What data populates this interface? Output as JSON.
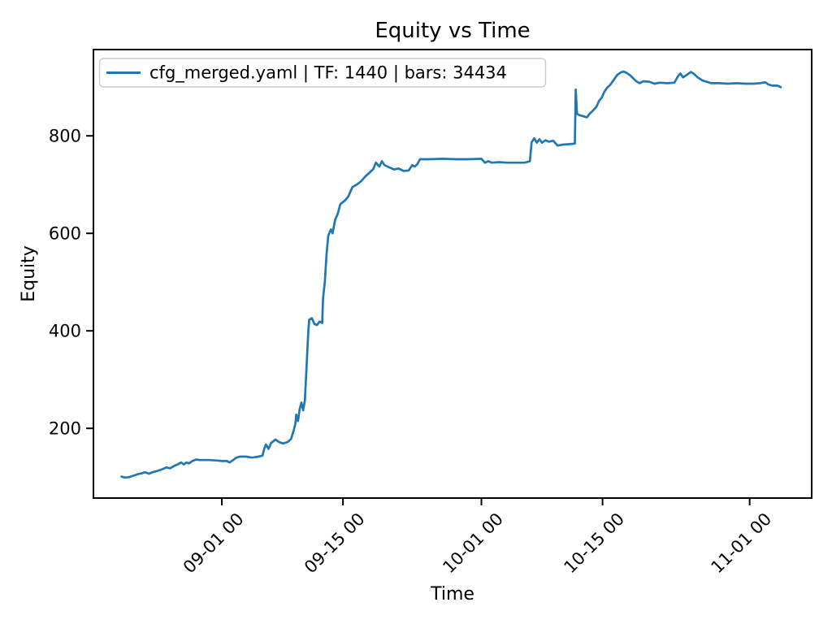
{
  "title": "Equity vs Time",
  "xlabel": "Time",
  "ylabel": "Equity",
  "legend": {
    "label": "cfg_merged.yaml | TF: 1440 | bars: 34434",
    "line_color": "#1f77b4"
  },
  "colors": {
    "series_blue": "#1f77b4",
    "axis_black": "#000000",
    "legend_border": "#cccccc",
    "background": "#ffffff"
  },
  "chart_data": {
    "type": "line",
    "title": "Equity vs Time",
    "xlabel": "Time",
    "ylabel": "Equity",
    "x_unit": "days since 09-01 00:00",
    "xlim_days": [
      -14.84,
      68.17
    ],
    "ylim": [
      57,
      977
    ],
    "grid": false,
    "legend_position": "upper left",
    "x_ticks": [
      {
        "day": 0,
        "label": "09-01 00"
      },
      {
        "day": 14,
        "label": "09-15 00"
      },
      {
        "day": 30,
        "label": "10-01 00"
      },
      {
        "day": 44,
        "label": "10-15 00"
      },
      {
        "day": 61,
        "label": "11-01 00"
      }
    ],
    "y_ticks": [
      200,
      400,
      600,
      800
    ],
    "series": [
      {
        "name": "cfg_merged.yaml | TF: 1440 | bars: 34434",
        "color": "#1f77b4",
        "line_width": 2.7,
        "points": [
          [
            -11.6,
            101
          ],
          [
            -11.2,
            99
          ],
          [
            -10.7,
            100
          ],
          [
            -10.2,
            103
          ],
          [
            -9.7,
            106
          ],
          [
            -9.2,
            108
          ],
          [
            -8.9,
            110
          ],
          [
            -8.4,
            107
          ],
          [
            -8.0,
            110
          ],
          [
            -7.4,
            113
          ],
          [
            -6.9,
            116
          ],
          [
            -6.4,
            120
          ],
          [
            -6.0,
            118
          ],
          [
            -5.5,
            123
          ],
          [
            -5.1,
            126
          ],
          [
            -4.7,
            130
          ],
          [
            -4.4,
            126
          ],
          [
            -4.1,
            130
          ],
          [
            -3.8,
            128
          ],
          [
            -3.4,
            133
          ],
          [
            -3.0,
            136
          ],
          [
            -2.5,
            135
          ],
          [
            -1.5,
            135
          ],
          [
            -0.5,
            134
          ],
          [
            0.0,
            133
          ],
          [
            0.6,
            133
          ],
          [
            0.9,
            130
          ],
          [
            1.3,
            135
          ],
          [
            1.7,
            140
          ],
          [
            2.1,
            142
          ],
          [
            2.8,
            142
          ],
          [
            3.5,
            140
          ],
          [
            4.2,
            142
          ],
          [
            4.7,
            144
          ],
          [
            4.9,
            158
          ],
          [
            5.1,
            167
          ],
          [
            5.4,
            158
          ],
          [
            5.7,
            170
          ],
          [
            6.2,
            177
          ],
          [
            6.6,
            172
          ],
          [
            7.1,
            169
          ],
          [
            7.6,
            172
          ],
          [
            8.0,
            178
          ],
          [
            8.3,
            195
          ],
          [
            8.5,
            210
          ],
          [
            8.6,
            228
          ],
          [
            8.8,
            215
          ],
          [
            9.0,
            240
          ],
          [
            9.2,
            253
          ],
          [
            9.4,
            237
          ],
          [
            9.6,
            258
          ],
          [
            9.8,
            330
          ],
          [
            10.0,
            400
          ],
          [
            10.1,
            423
          ],
          [
            10.4,
            426
          ],
          [
            10.7,
            414
          ],
          [
            11.0,
            412
          ],
          [
            11.3,
            419
          ],
          [
            11.6,
            416
          ],
          [
            11.7,
            467
          ],
          [
            11.9,
            500
          ],
          [
            12.1,
            557
          ],
          [
            12.3,
            595
          ],
          [
            12.6,
            608
          ],
          [
            12.8,
            600
          ],
          [
            13.1,
            628
          ],
          [
            13.4,
            640
          ],
          [
            13.7,
            660
          ],
          [
            14.2,
            667
          ],
          [
            14.6,
            675
          ],
          [
            15.1,
            695
          ],
          [
            15.6,
            700
          ],
          [
            16.1,
            707
          ],
          [
            16.6,
            717
          ],
          [
            17.1,
            725
          ],
          [
            17.5,
            732
          ],
          [
            17.8,
            745
          ],
          [
            18.2,
            737
          ],
          [
            18.5,
            748
          ],
          [
            18.8,
            740
          ],
          [
            19.4,
            735
          ],
          [
            19.9,
            731
          ],
          [
            20.4,
            733
          ],
          [
            21.0,
            728
          ],
          [
            21.6,
            729
          ],
          [
            22.0,
            740
          ],
          [
            22.3,
            737
          ],
          [
            22.6,
            742
          ],
          [
            22.9,
            752
          ],
          [
            24.0,
            752
          ],
          [
            25.5,
            753
          ],
          [
            27.0,
            752
          ],
          [
            28.5,
            752
          ],
          [
            30.0,
            753
          ],
          [
            30.4,
            745
          ],
          [
            30.8,
            748
          ],
          [
            31.2,
            745
          ],
          [
            32.0,
            746
          ],
          [
            33.0,
            745
          ],
          [
            34.0,
            745
          ],
          [
            35.0,
            745
          ],
          [
            35.6,
            748
          ],
          [
            35.8,
            787
          ],
          [
            36.1,
            795
          ],
          [
            36.4,
            786
          ],
          [
            36.7,
            793
          ],
          [
            37.0,
            786
          ],
          [
            37.4,
            791
          ],
          [
            37.8,
            788
          ],
          [
            38.3,
            790
          ],
          [
            38.8,
            780
          ],
          [
            39.4,
            782
          ],
          [
            40.2,
            783
          ],
          [
            40.8,
            784
          ],
          [
            40.9,
            895
          ],
          [
            41.05,
            845
          ],
          [
            41.4,
            842
          ],
          [
            41.8,
            840
          ],
          [
            42.2,
            838
          ],
          [
            42.5,
            845
          ],
          [
            42.9,
            852
          ],
          [
            43.3,
            860
          ],
          [
            43.6,
            872
          ],
          [
            43.9,
            878
          ],
          [
            44.2,
            890
          ],
          [
            44.5,
            898
          ],
          [
            44.9,
            905
          ],
          [
            45.3,
            915
          ],
          [
            45.7,
            925
          ],
          [
            46.1,
            930
          ],
          [
            46.4,
            932
          ],
          [
            46.8,
            929
          ],
          [
            47.2,
            924
          ],
          [
            47.6,
            917
          ],
          [
            47.9,
            912
          ],
          [
            48.3,
            908
          ],
          [
            48.7,
            912
          ],
          [
            49.4,
            911
          ],
          [
            50.0,
            907
          ],
          [
            50.6,
            909
          ],
          [
            51.5,
            908
          ],
          [
            52.3,
            909
          ],
          [
            52.7,
            922
          ],
          [
            53.0,
            928
          ],
          [
            53.3,
            920
          ],
          [
            53.8,
            926
          ],
          [
            54.2,
            931
          ],
          [
            54.5,
            928
          ],
          [
            55.0,
            920
          ],
          [
            55.5,
            914
          ],
          [
            56.0,
            911
          ],
          [
            56.6,
            908
          ],
          [
            57.5,
            908
          ],
          [
            58.5,
            907
          ],
          [
            59.5,
            908
          ],
          [
            60.5,
            907
          ],
          [
            61.5,
            907
          ],
          [
            62.2,
            908
          ],
          [
            62.8,
            910
          ],
          [
            63.1,
            906
          ],
          [
            63.6,
            903
          ],
          [
            64.2,
            903
          ],
          [
            64.6,
            900
          ]
        ]
      }
    ]
  }
}
